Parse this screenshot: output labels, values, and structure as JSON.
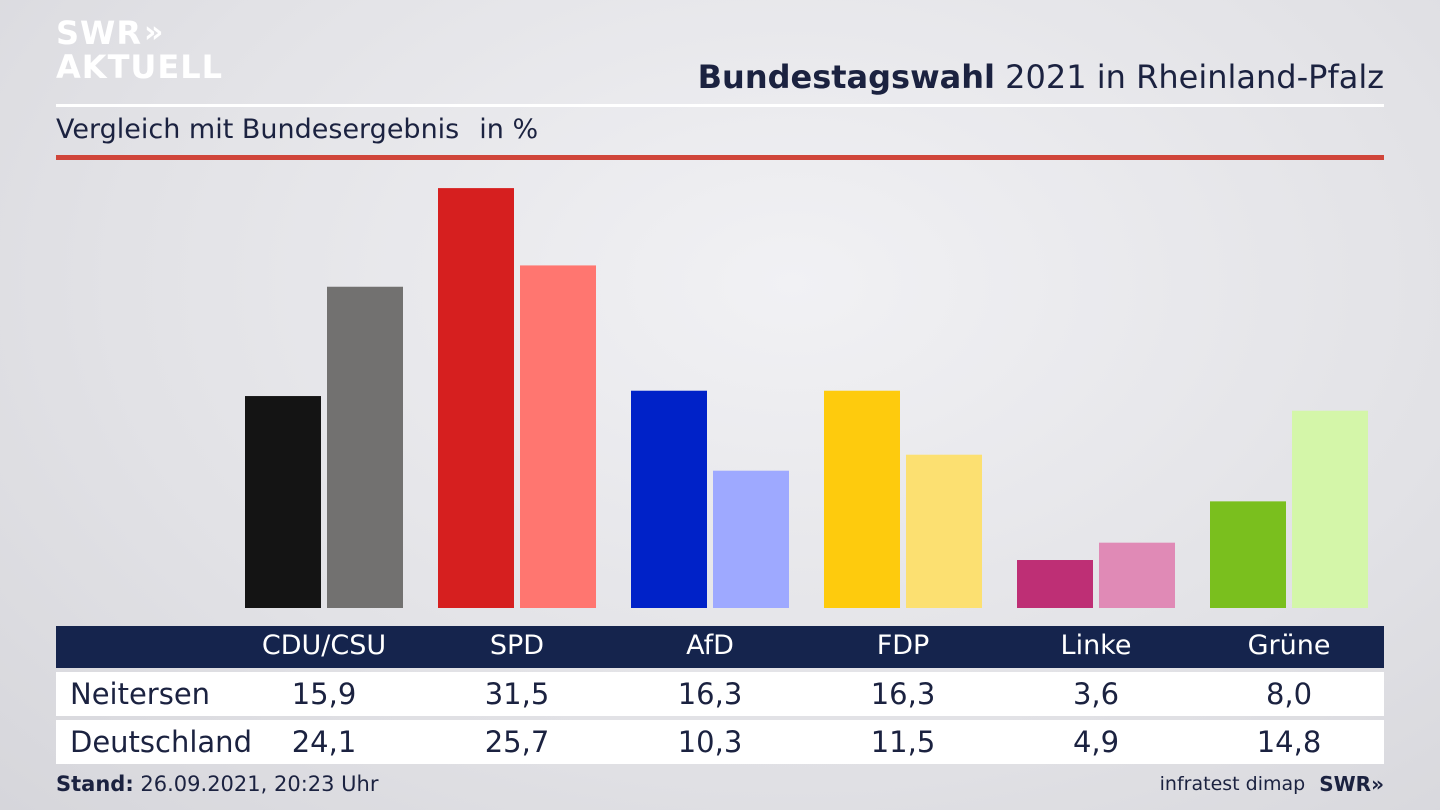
{
  "logo": {
    "line1": "SWR",
    "line2": "AKTUELL",
    "arrows": "»"
  },
  "header": {
    "title_bold": "Bundestagswahl",
    "title_rest": " 2021 in Rheinland-Pfalz",
    "subtitle": "Vergleich mit Bundesergebnis",
    "unit": "in %"
  },
  "chart_data": {
    "type": "bar",
    "categories": [
      "CDU/CSU",
      "SPD",
      "AfD",
      "FDP",
      "Linke",
      "Grüne"
    ],
    "series": [
      {
        "name": "Neitersen",
        "values": [
          15.9,
          31.5,
          16.3,
          16.3,
          3.6,
          8.0
        ]
      },
      {
        "name": "Deutschland",
        "values": [
          24.1,
          25.7,
          10.3,
          11.5,
          4.9,
          14.8
        ]
      }
    ],
    "colors": {
      "Neitersen": [
        "#141414",
        "#d61f1f",
        "#0022c8",
        "#fecb0d",
        "#be2f75",
        "#7abf1e"
      ],
      "Deutschland": [
        "#727170",
        "#ff7670",
        "#9ea9ff",
        "#fce071",
        "#e08ab6",
        "#d4f6a9"
      ]
    },
    "grid": false,
    "legend": "table-below"
  },
  "table": {
    "header": [
      "CDU/CSU",
      "SPD",
      "AfD",
      "FDP",
      "Linke",
      "Grüne"
    ],
    "rows": [
      {
        "label": "Neitersen",
        "values": [
          "15,9",
          "31,5",
          "16,3",
          "16,3",
          "3,6",
          "8,0"
        ]
      },
      {
        "label": "Deutschland",
        "values": [
          "24,1",
          "25,7",
          "10,3",
          "11,5",
          "4,9",
          "14,8"
        ]
      }
    ]
  },
  "footer": {
    "stand_label": "Stand:",
    "stand_value": " 26.09.2021, 20:23 Uhr",
    "source": "infratest dimap",
    "brand": "SWR»"
  }
}
